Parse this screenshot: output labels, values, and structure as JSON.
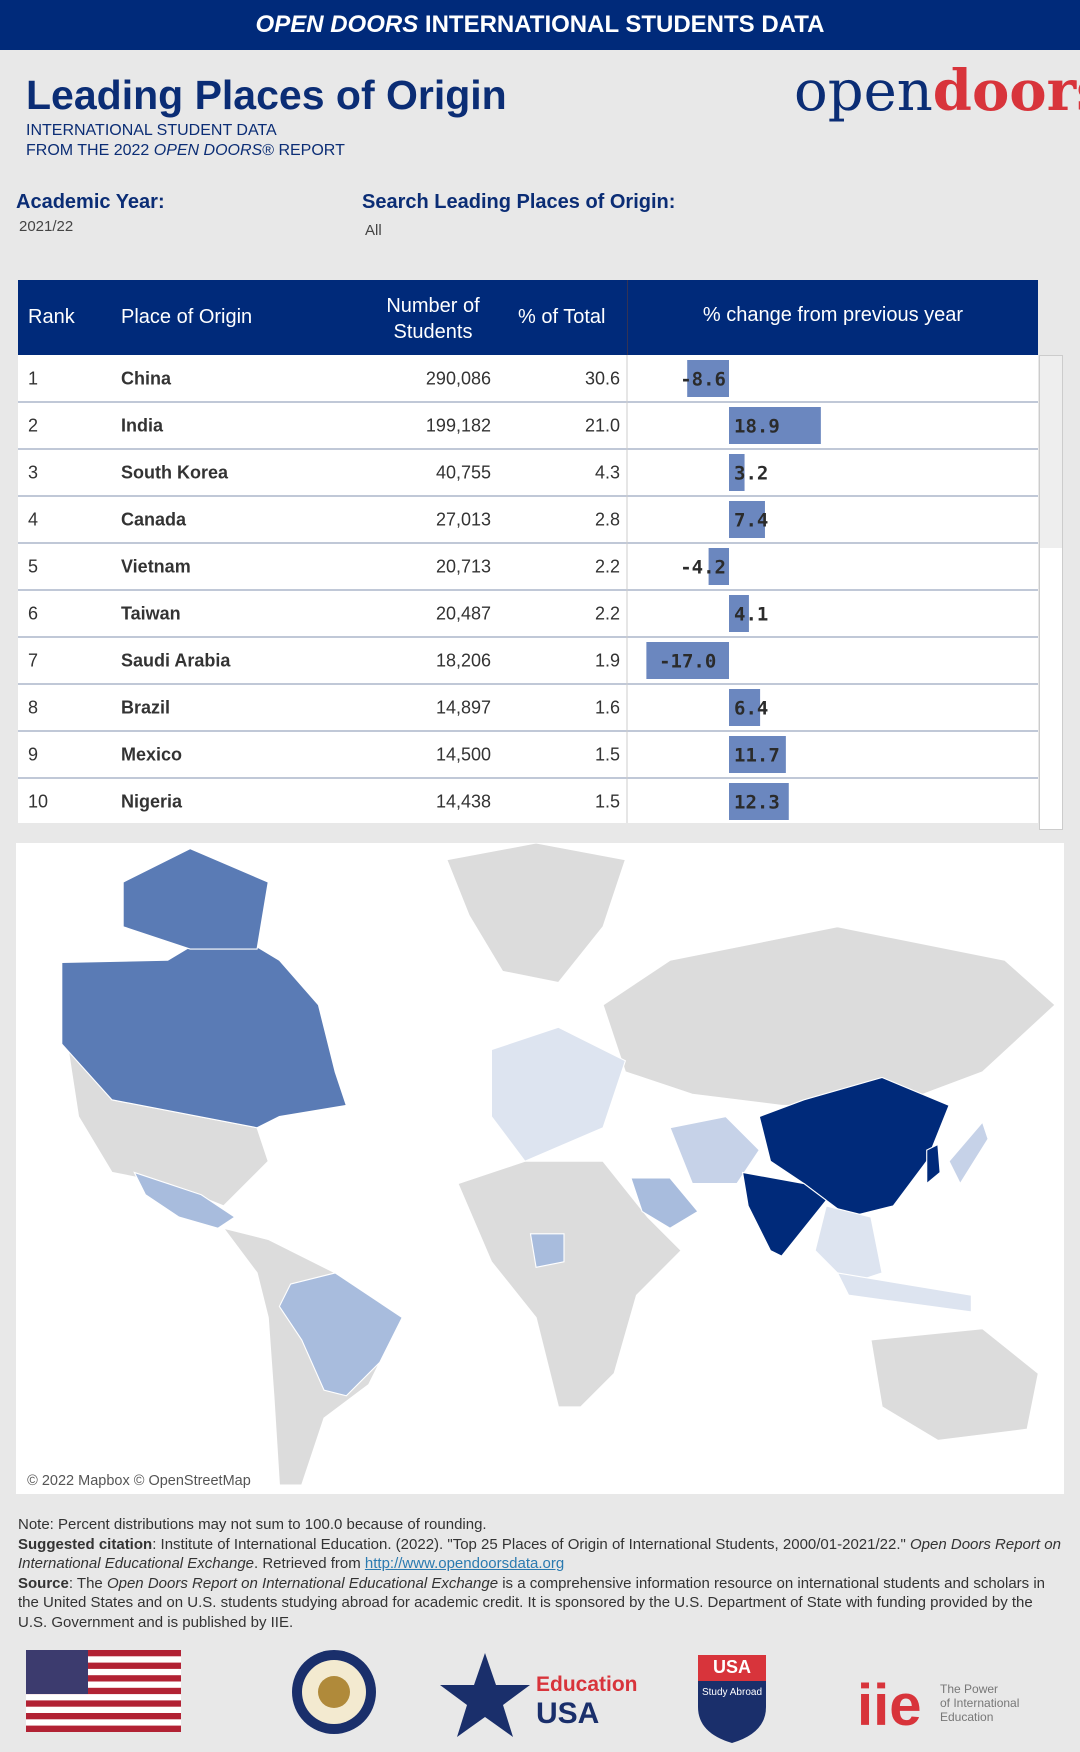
{
  "banner": {
    "italic": "OPEN DOORS",
    "rest": "INTERNATIONAL STUDENTS DATA"
  },
  "header": {
    "title": "Leading Places of Origin",
    "subtitle_line1": "INTERNATIONAL STUDENT DATA",
    "subtitle_line2_pre": "FROM THE 2022",
    "subtitle_line2_italic": "OPEN DOORS",
    "subtitle_line2_post": "® REPORT",
    "logo_open": "open",
    "logo_doors": "doors",
    "logo_mark": "®"
  },
  "filters": {
    "year_label": "Academic Year:",
    "year_value": "2021/22",
    "search_label": "Search Leading Places of Origin:",
    "search_value": "All"
  },
  "table": {
    "columns": [
      "Rank",
      "Place of Origin",
      "Number of Students",
      "% of Total",
      "% change from previous year"
    ],
    "rows": [
      [
        1,
        "China",
        "290,086",
        "30.6",
        -8.6
      ],
      [
        2,
        "India",
        "199,182",
        "21.0",
        18.9
      ],
      [
        3,
        "South Korea",
        "40,755",
        "4.3",
        3.2
      ],
      [
        4,
        "Canada",
        "27,013",
        "2.8",
        7.4
      ],
      [
        5,
        "Vietnam",
        "20,713",
        "2.2",
        -4.2
      ],
      [
        6,
        "Taiwan",
        "20,487",
        "2.2",
        4.1
      ],
      [
        7,
        "Saudi Arabia",
        "18,206",
        "1.9",
        {
          "value": -17,
          "label": "-17.0"
        }
      ],
      [
        8,
        "Brazil",
        "14,897",
        "1.6",
        6.4
      ],
      [
        9,
        "Mexico",
        "14,500",
        "1.5",
        11.7
      ],
      [
        10,
        "Nigeria",
        "14,438",
        "1.5",
        12.3
      ]
    ]
  },
  "map": {
    "attribution": "© 2022 Mapbox © OpenStreetMap"
  },
  "notes": {
    "note": "Note: Percent distributions may not sum to 100.0 because of rounding.",
    "citation_label": "Suggested citation",
    "citation_1": ": Institute of International Education. (2022). \"Top 25 Places of Origin of International Students, 2000/01-2021/22.\"",
    "citation_italic": "Open Doors Report on International Educational Exchange",
    "citation_2": ". Retrieved from",
    "citation_link": "http://www.opendoorsdata.org",
    "source_label": "Source",
    "source_1": ": The",
    "source_italic": "Open Doors Report on International Educational Exchange",
    "source_2": "is a comprehensive information resource on international students and scholars in the United States and on U.S. students studying abroad for academic credit. It is sponsored by the U.S. Department of State with funding provided by the U.S. Government and is published by IIE."
  },
  "logos": {
    "edu_1": "Education",
    "edu_2": "USA",
    "sa_1": "USA",
    "sa_2": "Study Abroad",
    "iie": "iie",
    "iie_tag_1": "The Power",
    "iie_tag_2": "of International",
    "iie_tag_3": "Education"
  }
}
